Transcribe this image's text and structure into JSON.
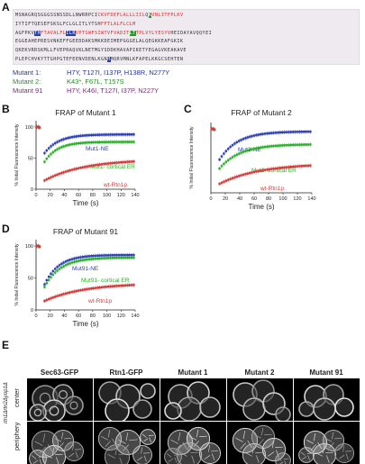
{
  "panels": {
    "a": "A",
    "b": "B",
    "c": "C",
    "d": "D",
    "e": "E"
  },
  "sequence": {
    "lines": [
      [
        [
          "MSNAG",
          "hb:G"
        ],
        [
          "RQSG",
          "n"
        ],
        [
          "GGSSNSSDL",
          "n"
        ],
        [
          "LNWRRPCI",
          "n"
        ],
        [
          "CKVFDEFLALLLIIL",
          "r"
        ],
        [
          "Q",
          "n"
        ],
        [
          "K",
          "hg"
        ],
        [
          "VNLITFPLKV",
          "r"
        ]
      ],
      [
        [
          "IYTIFTQESEFSKSLFCLGLITLY",
          "n"
        ],
        [
          "TSH",
          "n"
        ],
        [
          "FFTLALFLCLM",
          "r"
        ]
      ],
      [
        [
          "AGFPKV",
          "n"
        ],
        [
          "TH",
          "hb"
        ],
        [
          "FTAVALFL",
          "r"
        ],
        [
          "ILR",
          "hb"
        ],
        [
          "VPTS",
          "r"
        ],
        [
          "WFSIWTVFVADIT",
          "r"
        ],
        [
          "LT",
          "hg"
        ],
        [
          "TPLVYLYESYV",
          "r"
        ],
        [
          "HEIDAYAVQQYEI",
          "n"
        ]
      ],
      [
        [
          "EGGEAHEPRESVNKEFFGEEDDAKSMKKDEIMEPGGGELALQEGKKEAFGKIK",
          "n"
        ]
      ],
      [
        [
          "QKEKVRRSKMLLFVEPRAQVKLNETMGYSDDKHAVAPIKETYEGAGVKEAKAVE",
          "n"
        ]
      ],
      [
        [
          "PLEPCHVKYTTGHPGTEFEENVDENLKGN",
          "n"
        ],
        [
          "H",
          "hb"
        ],
        [
          "MQRVMNLKFAPELKKGCSEHTEN",
          "n"
        ]
      ]
    ]
  },
  "mutants": [
    {
      "name": "Mutant 1:",
      "value": "H7Y, T127I, I137P, H138R, N277Y",
      "color": "#24348f"
    },
    {
      "name": "Mutant 2:",
      "value": "K43*, F67L, T157S",
      "color": "#2a8a2a"
    },
    {
      "name": "Mutant 91",
      "value": "H7Y, K46I, T127I, I37P, N227Y",
      "color": "#7a2a7a"
    }
  ],
  "chart_data": [
    {
      "type": "scatter",
      "title": "FRAP of Mutant 1",
      "xlabel": "Time (s)",
      "ylabel": "% Initial Fluorescence Intensity",
      "ylim": [
        0,
        110
      ],
      "xlim": [
        0,
        140
      ],
      "xticks": [
        "0",
        "20",
        "40",
        "60",
        "80",
        "100",
        "120",
        "140"
      ],
      "yticks": [
        "0",
        "50",
        "100"
      ],
      "series": [
        {
          "name": "Mut1-NE",
          "color": "#2f3fb8",
          "pre": [
            100,
            100,
            99
          ],
          "start": 58,
          "end": 88,
          "k": 0.05
        },
        {
          "name": "Mut1- cortical ER",
          "color": "#2ab02a",
          "pre": [
            100,
            100,
            99
          ],
          "start": 44,
          "end": 76,
          "k": 0.055
        },
        {
          "name": "wt-Rtn1p",
          "color": "#d43c3c",
          "pre": [
            100,
            100,
            99
          ],
          "start": 14,
          "end": 48,
          "k": 0.018
        }
      ]
    },
    {
      "type": "scatter",
      "title": "FRAP of Mutant 2",
      "xlabel": "Time (s)",
      "ylabel": "% Initial Fluorescence Intensity",
      "ylim": [
        0,
        110
      ],
      "xlim": [
        0,
        140
      ],
      "xticks": [
        "0",
        "20",
        "40",
        "60",
        "80",
        "100",
        "120",
        "140"
      ],
      "yticks": [],
      "series": [
        {
          "name": "Mut2-NE",
          "color": "#2f3fb8",
          "pre": [
            100,
            100,
            99
          ],
          "start": 52,
          "end": 96,
          "k": 0.04
        },
        {
          "name": "Mut2- cortical ER",
          "color": "#2ab02a",
          "pre": [
            100,
            100,
            99
          ],
          "start": 38,
          "end": 76,
          "k": 0.035
        },
        {
          "name": "wt-Rtn1p",
          "color": "#d43c3c",
          "pre": [
            100,
            100,
            99
          ],
          "start": 14,
          "end": 46,
          "k": 0.018
        }
      ]
    },
    {
      "type": "scatter",
      "title": "FRAP of Mutant 91",
      "xlabel": "Time (s)",
      "ylabel": "% Initial Fluorescence Intensity",
      "ylim": [
        0,
        110
      ],
      "xlim": [
        0,
        140
      ],
      "xticks": [
        "0",
        "20",
        "40",
        "60",
        "80",
        "100",
        "120",
        "140"
      ],
      "yticks": [
        "0",
        "50",
        "100"
      ],
      "series": [
        {
          "name": "Mut91-NE",
          "color": "#2f3fb8",
          "pre": [
            100,
            100,
            99
          ],
          "start": 40,
          "end": 86,
          "k": 0.05
        },
        {
          "name": "Mut91- cortical ER",
          "color": "#2ab02a",
          "pre": [
            100,
            100,
            99
          ],
          "start": 36,
          "end": 82,
          "k": 0.045
        },
        {
          "name": "wt-Rtn1p",
          "color": "#d43c3c",
          "pre": [
            100,
            100,
            99
          ],
          "start": 14,
          "end": 42,
          "k": 0.018
        }
      ]
    }
  ],
  "panel_e": {
    "columns": [
      "Sec63-GFP",
      "Rtn1-GFP",
      "Mutant 1",
      "Mutant 2",
      "Mutant 91"
    ],
    "rows": [
      "center",
      "periphery"
    ],
    "strain": "rtn1Δrtn2Δyop1Δ"
  }
}
